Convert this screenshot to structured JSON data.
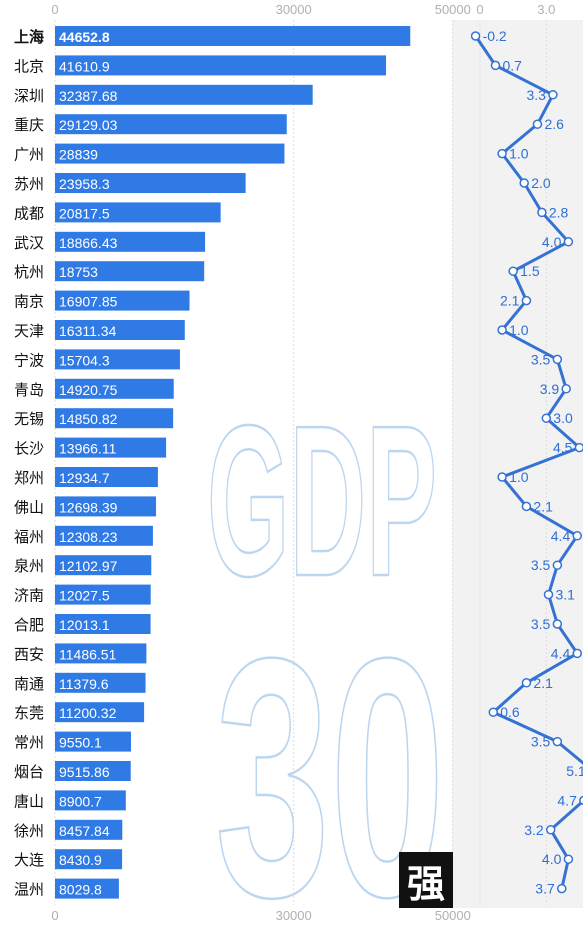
{
  "watermark": {
    "line1": "GDP",
    "line2": "30",
    "badge": "强"
  },
  "colors": {
    "bar": "#2f7ae5",
    "line": "#3472d4",
    "panel": "#f2f2f2"
  },
  "chart_data": [
    {
      "type": "bar",
      "orientation": "horizontal",
      "title": "",
      "xlabel": "",
      "ylabel": "",
      "xlim": [
        0,
        50000
      ],
      "x_ticks": [
        "0",
        "30000",
        "50000"
      ],
      "grid": true,
      "categories": [
        "上海",
        "北京",
        "深圳",
        "重庆",
        "广州",
        "苏州",
        "成都",
        "武汉",
        "杭州",
        "南京",
        "天津",
        "宁波",
        "青岛",
        "无锡",
        "长沙",
        "郑州",
        "佛山",
        "福州",
        "泉州",
        "济南",
        "合肥",
        "西安",
        "南通",
        "东莞",
        "常州",
        "烟台",
        "唐山",
        "徐州",
        "大连",
        "温州"
      ],
      "values": [
        44652.8,
        41610.9,
        32387.68,
        29129.03,
        28839,
        23958.3,
        20817.5,
        18866.43,
        18753,
        16907.85,
        16311.34,
        15704.3,
        14920.75,
        14850.82,
        13966.11,
        12934.7,
        12698.39,
        12308.23,
        12102.97,
        12027.5,
        12013.1,
        11486.51,
        11379.6,
        11200.32,
        9550.1,
        9515.86,
        8900.7,
        8457.84,
        8430.9,
        8029.8
      ],
      "value_labels": [
        "44652.8",
        "41610.9",
        "32387.68",
        "29129.03",
        "28839",
        "23958.3",
        "20817.5",
        "18866.43",
        "18753",
        "16907.85",
        "16311.34",
        "15704.3",
        "14920.75",
        "14850.82",
        "13966.11",
        "12934.7",
        "12698.39",
        "12308.23",
        "12102.97",
        "12027.5",
        "12013.1",
        "11486.51",
        "11379.6",
        "11200.32",
        "9550.1",
        "9515.86",
        "8900.7",
        "8457.84",
        "8430.9",
        "8029.8"
      ]
    },
    {
      "type": "line",
      "title": "",
      "xlabel": "",
      "ylabel": "",
      "xlim": [
        0,
        6.0
      ],
      "x_ticks": [
        "0",
        "3.0",
        "6.0"
      ],
      "values": [
        -0.2,
        0.7,
        3.3,
        2.6,
        1.0,
        2.0,
        2.8,
        4.0,
        1.5,
        2.1,
        1.0,
        3.5,
        3.9,
        3.0,
        4.5,
        1.0,
        2.1,
        4.4,
        3.5,
        3.1,
        3.5,
        4.4,
        2.1,
        0.6,
        3.5,
        5.1,
        4.7,
        3.2,
        4.0,
        3.7
      ],
      "value_labels": [
        "-0.2",
        "0.7",
        "3.3",
        "2.6",
        "1.0",
        "2.0",
        "2.8",
        "4.0",
        "1.5",
        "2.1",
        "1.0",
        "3.5",
        "3.9",
        "3.0",
        "4.5",
        "1.0",
        "2.1",
        "4.4",
        "3.5",
        "3.1",
        "3.5",
        "4.4",
        "2.1",
        "0.6",
        "3.5",
        "5.1",
        "4.7",
        "3.2",
        "4.0",
        "3.7"
      ]
    }
  ]
}
